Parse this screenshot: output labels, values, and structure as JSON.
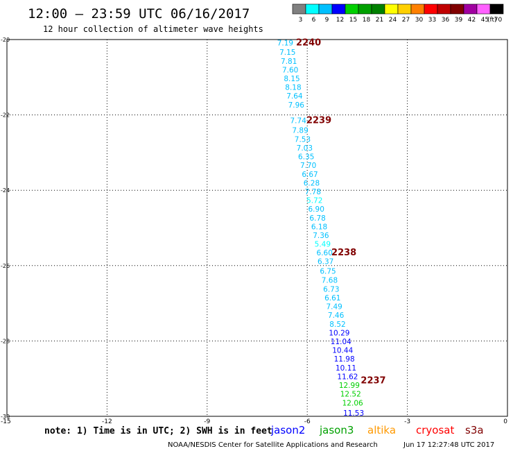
{
  "header": {
    "title": "12:00 – 23:59 UTC 06/16/2017",
    "subtitle": "12 hour collection of altimeter wave heights"
  },
  "colorbar": {
    "unit": "(ft)",
    "bins": [
      {
        "label": "3",
        "color": "#808080"
      },
      {
        "label": "6",
        "color": "#00ffff"
      },
      {
        "label": "9",
        "color": "#00c0ff"
      },
      {
        "label": "12",
        "color": "#0000ff"
      },
      {
        "label": "15",
        "color": "#00d000"
      },
      {
        "label": "18",
        "color": "#00a000"
      },
      {
        "label": "21",
        "color": "#008000"
      },
      {
        "label": "24",
        "color": "#ffff00"
      },
      {
        "label": "27",
        "color": "#ffd000"
      },
      {
        "label": "30",
        "color": "#ff8000"
      },
      {
        "label": "33",
        "color": "#ff0000"
      },
      {
        "label": "36",
        "color": "#c00000"
      },
      {
        "label": "39",
        "color": "#800000"
      },
      {
        "label": "42",
        "color": "#a000a0"
      },
      {
        "label": "45",
        "color": "#ff60ff"
      },
      {
        "label": "70",
        "color": "#000000"
      }
    ]
  },
  "footer": {
    "note": "note: 1) Time is in UTC; 2) SWH is in feet",
    "credit": "NOAA/NESDIS Center for Satellite Applications and Research",
    "timestamp": "Jun 17 12:27:48 UTC 2017",
    "satellites": [
      {
        "label": "jason2",
        "color": "#0000ff"
      },
      {
        "label": "jason3",
        "color": "#00a000"
      },
      {
        "label": "altika",
        "color": "#ff9900"
      },
      {
        "label": "cryosat",
        "color": "#ff0000"
      },
      {
        "label": "s3a",
        "color": "#800000"
      }
    ]
  },
  "chart_data": {
    "type": "scatter",
    "title": "12:00 – 23:59 UTC 06/16/2017",
    "subtitle": "12 hour collection of altimeter wave heights",
    "xlabel": "",
    "ylabel": "",
    "xlim": [
      -15,
      0
    ],
    "ylim": [
      -30,
      -20
    ],
    "x_ticks": [
      -15,
      -12,
      -9,
      -6,
      -3,
      0
    ],
    "y_ticks": [
      -20,
      -22,
      -24,
      -26,
      -28,
      -30
    ],
    "grid": true,
    "points": [
      {
        "x": -6.66,
        "y": -20.08,
        "v": "7.19",
        "color": "#00c0ff"
      },
      {
        "x": -6.59,
        "y": -20.33,
        "v": "7.15",
        "color": "#00c0ff"
      },
      {
        "x": -6.55,
        "y": -20.57,
        "v": "7.81",
        "color": "#00c0ff"
      },
      {
        "x": -6.51,
        "y": -20.8,
        "v": "7.60",
        "color": "#00c0ff"
      },
      {
        "x": -6.46,
        "y": -21.03,
        "v": "8.15",
        "color": "#00c0ff"
      },
      {
        "x": -6.42,
        "y": -21.26,
        "v": "8.18",
        "color": "#00c0ff"
      },
      {
        "x": -6.38,
        "y": -21.49,
        "v": "7.64",
        "color": "#00c0ff"
      },
      {
        "x": -6.33,
        "y": -21.73,
        "v": "7.96",
        "color": "#00c0ff"
      },
      {
        "x": -6.27,
        "y": -22.15,
        "v": "7.74",
        "color": "#00c0ff"
      },
      {
        "x": -6.21,
        "y": -22.4,
        "v": "7.89",
        "color": "#00c0ff"
      },
      {
        "x": -6.14,
        "y": -22.64,
        "v": "7.53",
        "color": "#00c0ff"
      },
      {
        "x": -6.08,
        "y": -22.87,
        "v": "7.03",
        "color": "#00c0ff"
      },
      {
        "x": -6.03,
        "y": -23.1,
        "v": "6.35",
        "color": "#00c0ff"
      },
      {
        "x": -5.97,
        "y": -23.33,
        "v": "7.70",
        "color": "#00c0ff"
      },
      {
        "x": -5.92,
        "y": -23.57,
        "v": "6.67",
        "color": "#00c0ff"
      },
      {
        "x": -5.87,
        "y": -23.8,
        "v": "6.28",
        "color": "#00c0ff"
      },
      {
        "x": -5.83,
        "y": -24.03,
        "v": "7.78",
        "color": "#00c0ff"
      },
      {
        "x": -5.78,
        "y": -24.26,
        "v": "5.72",
        "color": "#00ffff"
      },
      {
        "x": -5.73,
        "y": -24.49,
        "v": "6.90",
        "color": "#00c0ff"
      },
      {
        "x": -5.69,
        "y": -24.73,
        "v": "6.78",
        "color": "#00c0ff"
      },
      {
        "x": -5.64,
        "y": -24.96,
        "v": "6.18",
        "color": "#00c0ff"
      },
      {
        "x": -5.59,
        "y": -25.19,
        "v": "7.36",
        "color": "#00c0ff"
      },
      {
        "x": -5.54,
        "y": -25.42,
        "v": "5.49",
        "color": "#00ffff"
      },
      {
        "x": -5.48,
        "y": -25.65,
        "v": "6.60",
        "color": "#00c0ff"
      },
      {
        "x": -5.45,
        "y": -25.88,
        "v": "6.37",
        "color": "#00c0ff"
      },
      {
        "x": -5.38,
        "y": -26.14,
        "v": "6.75",
        "color": "#00c0ff"
      },
      {
        "x": -5.33,
        "y": -26.38,
        "v": "7.68",
        "color": "#00c0ff"
      },
      {
        "x": -5.28,
        "y": -26.62,
        "v": "6.73",
        "color": "#00c0ff"
      },
      {
        "x": -5.24,
        "y": -26.85,
        "v": "6.61",
        "color": "#00c0ff"
      },
      {
        "x": -5.19,
        "y": -27.08,
        "v": "7.49",
        "color": "#00c0ff"
      },
      {
        "x": -5.14,
        "y": -27.31,
        "v": "7.46",
        "color": "#00c0ff"
      },
      {
        "x": -5.09,
        "y": -27.55,
        "v": "8.52",
        "color": "#00c0ff"
      },
      {
        "x": -5.04,
        "y": -27.78,
        "v": "10.29",
        "color": "#0000ff"
      },
      {
        "x": -4.99,
        "y": -28.01,
        "v": "11.04",
        "color": "#0000ff"
      },
      {
        "x": -4.94,
        "y": -28.24,
        "v": "10.44",
        "color": "#0000ff"
      },
      {
        "x": -4.89,
        "y": -28.47,
        "v": "11.98",
        "color": "#0000ff"
      },
      {
        "x": -4.84,
        "y": -28.71,
        "v": "10.11",
        "color": "#0000ff"
      },
      {
        "x": -4.79,
        "y": -28.94,
        "v": "11.62",
        "color": "#0000ff"
      },
      {
        "x": -4.74,
        "y": -29.17,
        "v": "12.99",
        "color": "#00d000"
      },
      {
        "x": -4.7,
        "y": -29.4,
        "v": "12.52",
        "color": "#00d000"
      },
      {
        "x": -4.64,
        "y": -29.64,
        "v": "12.06",
        "color": "#00d000"
      },
      {
        "x": -4.61,
        "y": -29.91,
        "v": "11.53",
        "color": "#0000ff"
      }
    ],
    "pass_labels": [
      {
        "x": -5.96,
        "y": -20.08,
        "label": "2240",
        "color": "#800000"
      },
      {
        "x": -5.65,
        "y": -22.15,
        "label": "2239",
        "color": "#800000"
      },
      {
        "x": -4.9,
        "y": -25.65,
        "label": "2238",
        "color": "#800000"
      },
      {
        "x": -4.02,
        "y": -29.05,
        "label": "2237",
        "color": "#800000"
      }
    ]
  }
}
